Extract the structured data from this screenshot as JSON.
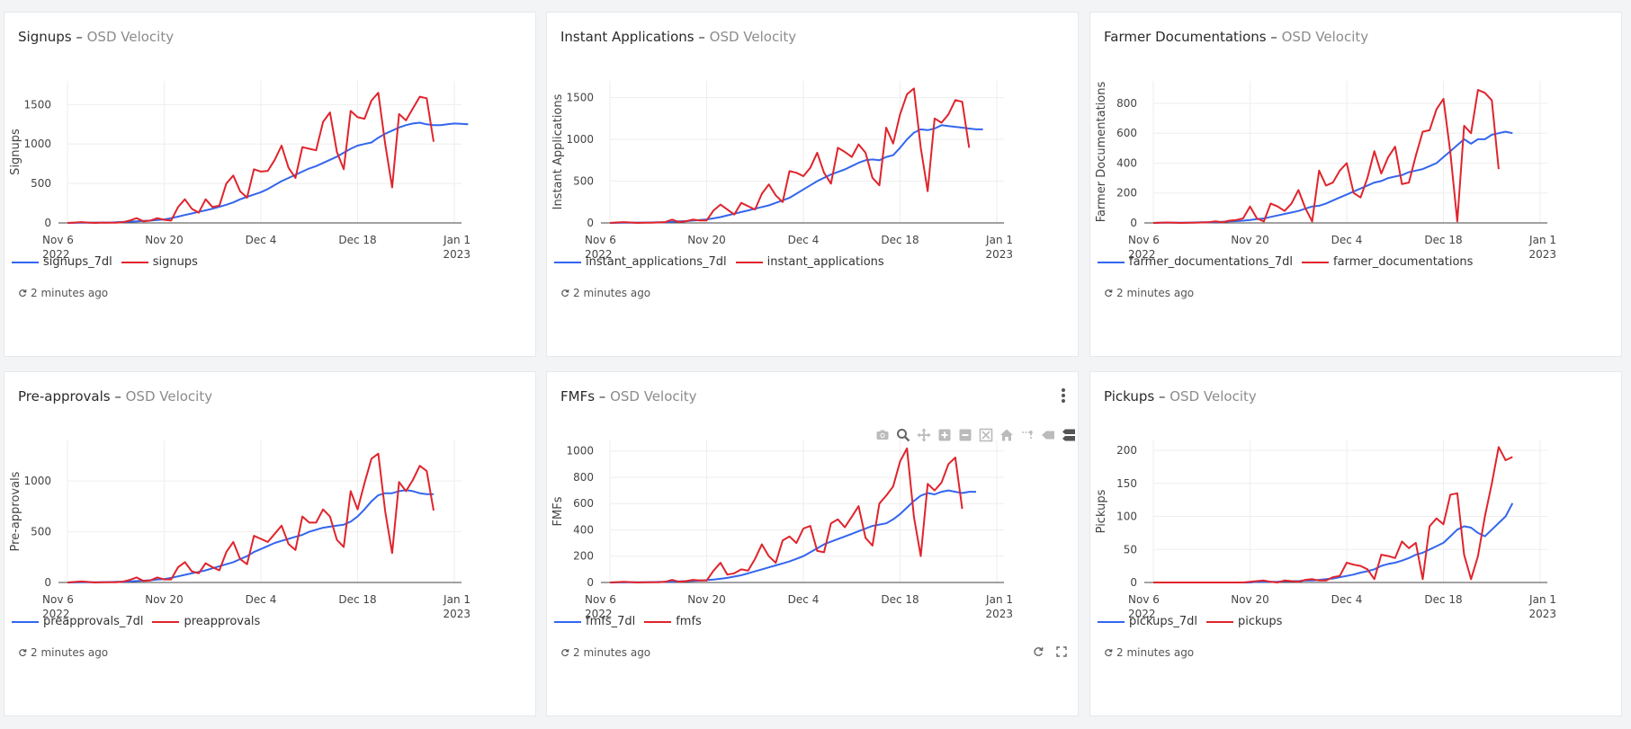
{
  "dashboard": {
    "subtitle": "OSD Velocity"
  },
  "colors": {
    "series_7dl": "#3366ee",
    "series_raw": "#e0242c"
  },
  "x_ticks": [
    {
      "label": "Nov 6",
      "label2": "2022",
      "date": "2022-11-06"
    },
    {
      "label": "Nov 20",
      "label2": "",
      "date": "2022-11-20"
    },
    {
      "label": "Dec 4",
      "label2": "",
      "date": "2022-12-04"
    },
    {
      "label": "Dec 18",
      "label2": "",
      "date": "2022-12-18"
    },
    {
      "label": "Jan 1",
      "label2": "2023",
      "date": "2023-01-01"
    }
  ],
  "cards": [
    {
      "title": "Signups",
      "dash": " – ",
      "subtitle": "OSD Velocity",
      "updated": "2 minutes ago",
      "chart_data": {
        "type": "line",
        "title": "Signups",
        "xlabel": "",
        "ylabel": "Signups",
        "xlim": [
          "2022-11-06",
          "2023-01-01"
        ],
        "ylim": [
          0,
          1800
        ],
        "yticks": [
          0,
          500,
          1000,
          1500
        ],
        "x_start": "2022-11-06",
        "x_step_days": 1,
        "series": [
          {
            "name": "signups_7dl",
            "color": "#3366ee",
            "values": [
              0,
              1,
              2,
              3,
              4,
              4,
              5,
              8,
              12,
              16,
              20,
              25,
              30,
              36,
              45,
              60,
              80,
              100,
              120,
              140,
              160,
              180,
              205,
              230,
              260,
              300,
              330,
              360,
              390,
              430,
              480,
              530,
              570,
              610,
              650,
              690,
              720,
              760,
              800,
              840,
              890,
              940,
              980,
              1000,
              1020,
              1080,
              1130,
              1170,
              1210,
              1240,
              1260,
              1270,
              1250,
              1240,
              1240,
              1250,
              1260,
              1255,
              1250
            ]
          },
          {
            "name": "signups",
            "color": "#e0242c",
            "values": [
              0,
              5,
              10,
              5,
              0,
              5,
              3,
              2,
              8,
              30,
              60,
              20,
              30,
              60,
              40,
              30,
              200,
              300,
              180,
              130,
              300,
              200,
              220,
              500,
              600,
              400,
              320,
              680,
              650,
              660,
              800,
              980,
              700,
              570,
              960,
              940,
              920,
              1280,
              1400,
              900,
              680,
              1420,
              1340,
              1320,
              1550,
              1650,
              1000,
              450,
              1380,
              1300,
              1450,
              1600,
              1580,
              1030
            ]
          }
        ]
      }
    },
    {
      "title": "Instant Applications",
      "dash": " – ",
      "subtitle": "OSD Velocity",
      "updated": "2 minutes ago",
      "chart_data": {
        "type": "line",
        "title": "Instant Applications",
        "xlabel": "",
        "ylabel": "Instant Applications",
        "xlim": [
          "2022-11-06",
          "2023-01-01"
        ],
        "ylim": [
          0,
          1700
        ],
        "yticks": [
          0,
          500,
          1000,
          1500
        ],
        "x_start": "2022-11-06",
        "x_step_days": 1,
        "series": [
          {
            "name": "instant_applications_7dl",
            "color": "#3366ee",
            "values": [
              0,
              1,
              2,
              3,
              4,
              4,
              5,
              8,
              10,
              14,
              18,
              22,
              28,
              34,
              42,
              55,
              70,
              90,
              110,
              130,
              150,
              170,
              190,
              210,
              240,
              270,
              300,
              350,
              400,
              450,
              500,
              540,
              580,
              610,
              640,
              680,
              720,
              750,
              760,
              750,
              790,
              810,
              900,
              1000,
              1080,
              1120,
              1110,
              1130,
              1170,
              1160,
              1150,
              1140,
              1130,
              1120,
              1120
            ]
          },
          {
            "name": "instant_applications",
            "color": "#e0242c",
            "values": [
              0,
              5,
              10,
              5,
              0,
              3,
              2,
              5,
              10,
              40,
              10,
              20,
              40,
              30,
              30,
              150,
              220,
              160,
              100,
              240,
              200,
              160,
              350,
              460,
              330,
              250,
              620,
              600,
              560,
              660,
              840,
              600,
              470,
              900,
              850,
              790,
              940,
              840,
              540,
              450,
              1140,
              950,
              1300,
              1540,
              1610,
              900,
              380,
              1250,
              1200,
              1300,
              1470,
              1450,
              900
            ]
          }
        ]
      }
    },
    {
      "title": "Farmer Documentations",
      "dash": " – ",
      "subtitle": "OSD Velocity",
      "updated": "2 minutes ago",
      "chart_data": {
        "type": "line",
        "title": "Farmer Documentations",
        "xlabel": "",
        "ylabel": "Farmer Documentations",
        "xlim": [
          "2022-11-06",
          "2023-01-01"
        ],
        "ylim": [
          0,
          950
        ],
        "yticks": [
          0,
          200,
          400,
          600,
          800
        ],
        "x_start": "2022-11-06",
        "x_step_days": 1,
        "series": [
          {
            "name": "farmer_documentations_7dl",
            "color": "#3366ee",
            "values": [
              0,
              1,
              1,
              2,
              2,
              2,
              3,
              4,
              5,
              6,
              8,
              10,
              12,
              15,
              20,
              25,
              30,
              40,
              50,
              60,
              70,
              80,
              95,
              110,
              115,
              130,
              150,
              170,
              190,
              210,
              230,
              250,
              270,
              280,
              300,
              310,
              320,
              340,
              350,
              360,
              380,
              400,
              440,
              480,
              520,
              560,
              530,
              560,
              560,
              590,
              600,
              610,
              600
            ]
          },
          {
            "name": "farmer_documentations",
            "color": "#e0242c",
            "values": [
              0,
              2,
              3,
              2,
              0,
              2,
              1,
              3,
              5,
              10,
              5,
              15,
              20,
              30,
              110,
              30,
              10,
              130,
              110,
              80,
              130,
              220,
              100,
              10,
              350,
              250,
              270,
              350,
              400,
              200,
              170,
              300,
              480,
              330,
              440,
              510,
              260,
              270,
              450,
              610,
              620,
              760,
              830,
              470,
              10,
              650,
              600,
              890,
              870,
              820,
              360
            ]
          }
        ]
      }
    },
    {
      "title": "Pre-approvals",
      "dash": " – ",
      "subtitle": "OSD Velocity",
      "updated": "2 minutes ago",
      "chart_data": {
        "type": "line",
        "title": "Pre-approvals",
        "xlabel": "",
        "ylabel": "Pre-approvals",
        "xlim": [
          "2022-11-06",
          "2023-01-01"
        ],
        "ylim": [
          0,
          1400
        ],
        "yticks": [
          0,
          500,
          1000
        ],
        "x_start": "2022-11-06",
        "x_step_days": 1,
        "series": [
          {
            "name": "preapprovals_7dl",
            "color": "#3366ee",
            "values": [
              0,
              1,
              2,
              2,
              3,
              3,
              4,
              6,
              8,
              10,
              14,
              18,
              22,
              28,
              34,
              45,
              60,
              75,
              90,
              105,
              120,
              140,
              160,
              180,
              200,
              230,
              260,
              300,
              330,
              360,
              390,
              410,
              430,
              450,
              470,
              500,
              520,
              540,
              550,
              560,
              570,
              600,
              650,
              720,
              800,
              860,
              880,
              880,
              900,
              910,
              900,
              880,
              870,
              870
            ]
          },
          {
            "name": "preapprovals",
            "color": "#e0242c",
            "values": [
              0,
              5,
              10,
              5,
              0,
              3,
              3,
              3,
              8,
              25,
              50,
              15,
              20,
              50,
              30,
              30,
              150,
              200,
              110,
              90,
              190,
              150,
              120,
              300,
              400,
              230,
              180,
              460,
              430,
              400,
              480,
              560,
              380,
              320,
              650,
              590,
              590,
              720,
              650,
              420,
              350,
              900,
              720,
              980,
              1220,
              1270,
              700,
              290,
              990,
              900,
              1010,
              1150,
              1100,
              710
            ]
          }
        ]
      }
    },
    {
      "title": "FMFs",
      "dash": " – ",
      "subtitle": "OSD Velocity",
      "updated": "2 minutes ago",
      "chart_data": {
        "type": "line",
        "title": "FMFs",
        "xlabel": "",
        "ylabel": "FMFs",
        "xlim": [
          "2022-11-06",
          "2023-01-01"
        ],
        "ylim": [
          0,
          1080
        ],
        "yticks": [
          0,
          200,
          400,
          600,
          800,
          1000
        ],
        "x_start": "2022-11-06",
        "x_step_days": 1,
        "series": [
          {
            "name": "fmfs_7dl",
            "color": "#3366ee",
            "values": [
              0,
              1,
              1,
              2,
              2,
              2,
              3,
              4,
              5,
              6,
              8,
              10,
              12,
              15,
              18,
              22,
              28,
              35,
              45,
              55,
              70,
              85,
              100,
              115,
              130,
              145,
              160,
              180,
              200,
              230,
              260,
              290,
              310,
              330,
              350,
              370,
              390,
              410,
              430,
              440,
              450,
              480,
              520,
              570,
              620,
              660,
              680,
              670,
              690,
              700,
              690,
              680,
              690,
              690
            ]
          },
          {
            "name": "fmfs",
            "color": "#e0242c",
            "values": [
              0,
              3,
              5,
              3,
              0,
              2,
              2,
              2,
              5,
              20,
              5,
              10,
              20,
              15,
              15,
              90,
              150,
              60,
              70,
              100,
              90,
              180,
              290,
              200,
              150,
              320,
              350,
              300,
              410,
              430,
              240,
              230,
              450,
              480,
              420,
              500,
              580,
              340,
              280,
              600,
              660,
              730,
              920,
              1020,
              500,
              200,
              750,
              700,
              760,
              900,
              950,
              560
            ]
          }
        ]
      }
    },
    {
      "title": "Pickups",
      "dash": " – ",
      "subtitle": "OSD Velocity",
      "updated": "2 minutes ago",
      "chart_data": {
        "type": "line",
        "title": "Pickups",
        "xlabel": "",
        "ylabel": "Pickups",
        "xlim": [
          "2022-11-06",
          "2023-01-01"
        ],
        "ylim": [
          0,
          215
        ],
        "yticks": [
          0,
          50,
          100,
          150,
          200
        ],
        "x_start": "2022-11-06",
        "x_step_days": 1,
        "series": [
          {
            "name": "pickups_7dl",
            "color": "#3366ee",
            "values": [
              0,
              0,
              0,
              0,
              0,
              0,
              0,
              0,
              0,
              0,
              0,
              0,
              0,
              0,
              0,
              1,
              1,
              1,
              1,
              2,
              2,
              2,
              3,
              3,
              4,
              5,
              6,
              8,
              10,
              12,
              15,
              17,
              20,
              25,
              28,
              30,
              33,
              37,
              42,
              45,
              50,
              55,
              60,
              70,
              80,
              85,
              83,
              75,
              70,
              80,
              90,
              100,
              120
            ]
          },
          {
            "name": "pickups",
            "color": "#e0242c",
            "values": [
              0,
              0,
              0,
              0,
              0,
              0,
              0,
              0,
              0,
              0,
              0,
              0,
              0,
              0,
              1,
              2,
              3,
              1,
              0,
              3,
              2,
              1,
              4,
              5,
              3,
              3,
              8,
              10,
              30,
              27,
              25,
              20,
              5,
              42,
              40,
              37,
              62,
              52,
              60,
              5,
              85,
              97,
              88,
              133,
              135,
              42,
              5,
              40,
              100,
              150,
              205,
              185,
              190
            ]
          }
        ]
      }
    }
  ],
  "toolbar": {
    "download_icon": "camera-icon",
    "more_icon": "kebab-icon"
  }
}
